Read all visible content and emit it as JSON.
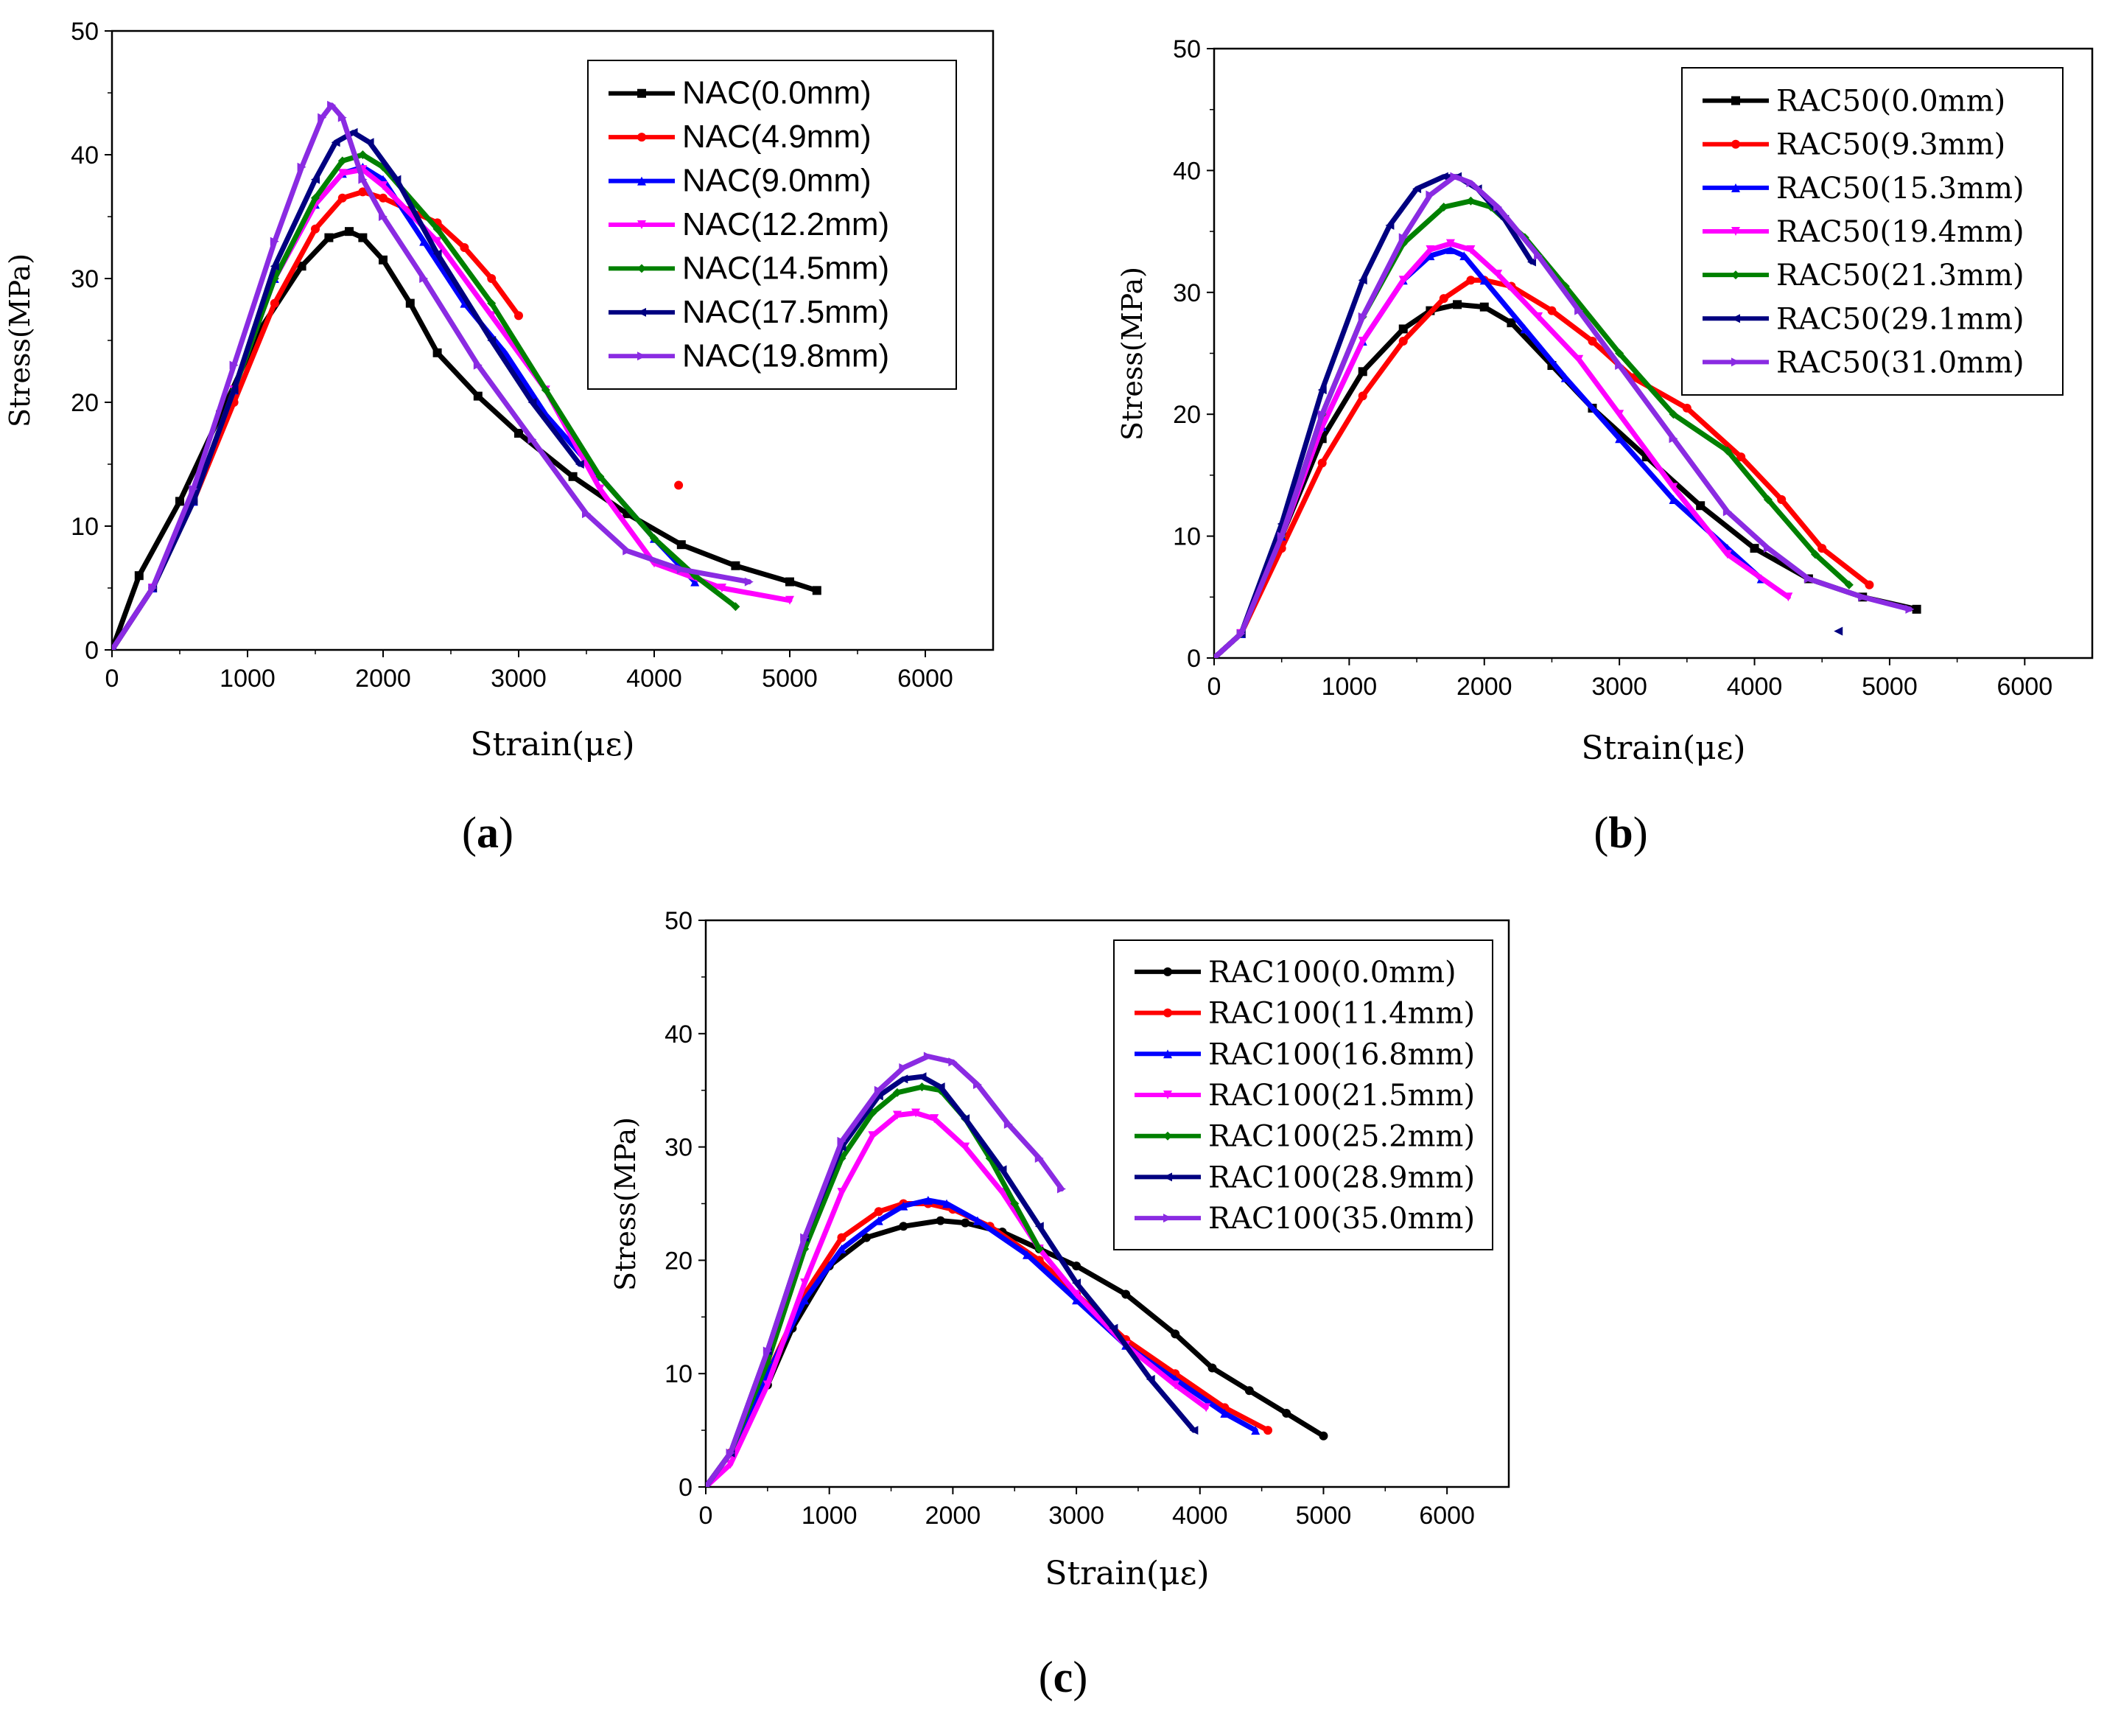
{
  "chart_data": [
    {
      "type": "line",
      "panel": "a",
      "caption": "a",
      "xlabel": "Strain(με)",
      "ylabel": "Stress(MPa)",
      "xlim": [
        0,
        6500
      ],
      "ylim": [
        0,
        50
      ],
      "xticks": [
        0,
        1000,
        2000,
        3000,
        4000,
        5000,
        6000
      ],
      "yticks": [
        0,
        10,
        20,
        30,
        40,
        50
      ],
      "legend_position": "top-right",
      "legend_font": "sans",
      "series": [
        {
          "name": "NAC(0.0mm)",
          "color": "#000000",
          "marker": "square",
          "x": [
            0,
            200,
            500,
            800,
            1100,
            1400,
            1600,
            1750,
            1850,
            2000,
            2200,
            2400,
            2700,
            3000,
            3400,
            3800,
            4200,
            4600,
            5000,
            5200
          ],
          "y": [
            0,
            6,
            12,
            19,
            26,
            31,
            33.3,
            33.8,
            33.3,
            31.5,
            28,
            24,
            20.5,
            17.5,
            14,
            11,
            8.5,
            6.8,
            5.5,
            4.8
          ]
        },
        {
          "name": "NAC(4.9mm)",
          "color": "#ff0000",
          "marker": "circle",
          "x": [
            0,
            300,
            600,
            900,
            1200,
            1500,
            1700,
            1850,
            2000,
            2200,
            2400,
            2600,
            2800,
            3000
          ],
          "y": [
            0,
            5,
            12,
            20,
            28,
            34,
            36.5,
            37,
            36.5,
            35.5,
            34.5,
            32.5,
            30,
            27
          ]
        },
        {
          "name": "NAC(4.9mm) outlier",
          "color": "#ff0000",
          "marker": "circle",
          "legend": false,
          "x": [
            4180
          ],
          "y": [
            13.3
          ]
        },
        {
          "name": "NAC(9.0mm)",
          "color": "#0000ff",
          "marker": "triangle-up",
          "x": [
            0,
            300,
            600,
            900,
            1200,
            1500,
            1700,
            1850,
            2000,
            2300,
            2600,
            2900,
            3200,
            3600,
            4000,
            4300
          ],
          "y": [
            0,
            5,
            12,
            21,
            30,
            36,
            38.5,
            39,
            38,
            33,
            28,
            24,
            19,
            14,
            9,
            5.5
          ]
        },
        {
          "name": "NAC(12.2mm)",
          "color": "#ff00ff",
          "marker": "triangle-down",
          "x": [
            0,
            300,
            600,
            900,
            1200,
            1500,
            1700,
            1850,
            2000,
            2400,
            2800,
            3200,
            3600,
            4000,
            4500,
            5000
          ],
          "y": [
            0,
            5,
            12,
            21,
            30,
            36,
            38.5,
            38.8,
            37.5,
            33,
            27,
            21,
            13,
            7,
            5,
            4
          ]
        },
        {
          "name": "NAC(14.5mm)",
          "color": "#008000",
          "marker": "diamond",
          "x": [
            0,
            300,
            600,
            900,
            1200,
            1500,
            1700,
            1850,
            2000,
            2400,
            2800,
            3200,
            3600,
            4000,
            4300,
            4600
          ],
          "y": [
            0,
            5,
            12,
            21,
            30,
            36.5,
            39.5,
            40,
            39,
            34,
            28,
            21,
            14,
            9,
            6,
            3.5
          ]
        },
        {
          "name": "NAC(17.5mm)",
          "color": "#000080",
          "marker": "triangle-left",
          "x": [
            0,
            300,
            600,
            900,
            1200,
            1500,
            1650,
            1780,
            1900,
            2100,
            2400,
            2800,
            3100,
            3450
          ],
          "y": [
            0,
            5,
            12,
            21,
            31,
            38,
            41,
            41.8,
            41,
            38,
            32,
            25,
            20,
            15
          ]
        },
        {
          "name": "NAC(19.8mm)",
          "color": "#8a2be2",
          "marker": "triangle-right",
          "x": [
            0,
            300,
            600,
            900,
            1200,
            1400,
            1550,
            1620,
            1700,
            1850,
            2000,
            2300,
            2700,
            3100,
            3500,
            3800,
            4200,
            4700
          ],
          "y": [
            0,
            5,
            13,
            23,
            33,
            39,
            43,
            44,
            43,
            38,
            35,
            30,
            23,
            17,
            11,
            8,
            6.5,
            5.5
          ]
        }
      ]
    },
    {
      "type": "line",
      "panel": "b",
      "caption": "b",
      "xlabel": "Strain(με)",
      "ylabel": "Stress(MPa)",
      "xlim": [
        0,
        6500
      ],
      "ylim": [
        0,
        50
      ],
      "xticks": [
        0,
        1000,
        2000,
        3000,
        4000,
        5000,
        6000
      ],
      "yticks": [
        0,
        10,
        20,
        30,
        40,
        50
      ],
      "legend_position": "top-right",
      "legend_font": "serif",
      "series": [
        {
          "name": "RAC50(0.0mm)",
          "color": "#000000",
          "marker": "square",
          "x": [
            0,
            200,
            500,
            800,
            1100,
            1400,
            1600,
            1800,
            2000,
            2200,
            2500,
            2800,
            3200,
            3600,
            4000,
            4400,
            4800,
            5200
          ],
          "y": [
            0,
            2,
            10,
            18,
            23.5,
            27,
            28.5,
            29,
            28.8,
            27.5,
            24,
            20.5,
            16.5,
            12.5,
            9,
            6.5,
            5,
            4
          ]
        },
        {
          "name": "RAC50(9.3mm)",
          "color": "#ff0000",
          "marker": "circle",
          "x": [
            0,
            200,
            500,
            800,
            1100,
            1400,
            1700,
            1900,
            2000,
            2200,
            2500,
            2800,
            3100,
            3500,
            3900,
            4200,
            4500,
            4850
          ],
          "y": [
            0,
            2,
            9,
            16,
            21.5,
            26,
            29.5,
            31,
            31,
            30.5,
            28.5,
            26,
            23,
            20.5,
            16.5,
            13,
            9,
            6
          ]
        },
        {
          "name": "RAC50(15.3mm)",
          "color": "#0000ff",
          "marker": "triangle-up",
          "x": [
            0,
            200,
            500,
            800,
            1100,
            1400,
            1600,
            1750,
            1850,
            2000,
            2300,
            2600,
            3000,
            3400,
            3800,
            4050
          ],
          "y": [
            0,
            2,
            10,
            19,
            26,
            31,
            33,
            33.5,
            33,
            31,
            27,
            23,
            18,
            13,
            9,
            6.5
          ]
        },
        {
          "name": "RAC50(19.4mm)",
          "color": "#ff00ff",
          "marker": "triangle-down",
          "x": [
            0,
            200,
            500,
            800,
            1100,
            1400,
            1600,
            1750,
            1900,
            2100,
            2400,
            2700,
            3000,
            3400,
            3800,
            4250
          ],
          "y": [
            0,
            2,
            10,
            19,
            26,
            31,
            33.5,
            34,
            33.5,
            31.5,
            28,
            24.5,
            20,
            14,
            8.5,
            5
          ]
        },
        {
          "name": "RAC50(21.3mm)",
          "color": "#008000",
          "marker": "diamond",
          "x": [
            0,
            200,
            500,
            800,
            1100,
            1400,
            1700,
            1900,
            2050,
            2300,
            2600,
            3000,
            3400,
            3800,
            4100,
            4450,
            4700
          ],
          "y": [
            0,
            2,
            10,
            20,
            28,
            34,
            37,
            37.5,
            37,
            34.5,
            30.5,
            25,
            20,
            17,
            13,
            8.5,
            6
          ]
        },
        {
          "name": "RAC50(29.1mm)",
          "color": "#000080",
          "marker": "triangle-left",
          "x": [
            0,
            200,
            500,
            800,
            1100,
            1300,
            1500,
            1700,
            1800,
            1950,
            2150,
            2350
          ],
          "y": [
            0,
            2,
            11,
            22,
            31,
            35.5,
            38.5,
            39.5,
            39.5,
            38.5,
            36,
            32.5
          ]
        },
        {
          "name": "RAC50(29.1mm) outlier",
          "color": "#000080",
          "marker": "triangle-left",
          "legend": false,
          "x": [
            4620
          ],
          "y": [
            2.2
          ]
        },
        {
          "name": "RAC50(31.0mm)",
          "color": "#8a2be2",
          "marker": "triangle-right",
          "x": [
            0,
            200,
            500,
            800,
            1100,
            1400,
            1600,
            1780,
            1900,
            2100,
            2400,
            2700,
            3000,
            3400,
            3800,
            4100,
            4400,
            4800,
            5150
          ],
          "y": [
            0,
            2,
            10,
            20,
            28,
            34.5,
            38,
            39.5,
            39,
            37,
            33,
            28.5,
            24,
            18,
            12,
            9,
            6.5,
            5,
            4
          ]
        }
      ]
    },
    {
      "type": "line",
      "panel": "c",
      "caption": "c",
      "xlabel": "Strain(με)",
      "ylabel": "Stress(MPa)",
      "xlim": [
        0,
        6500
      ],
      "ylim": [
        0,
        50
      ],
      "xticks": [
        0,
        1000,
        2000,
        3000,
        4000,
        5000,
        6000
      ],
      "yticks": [
        0,
        10,
        20,
        30,
        40,
        50
      ],
      "legend_position": "top-right",
      "legend_font": "serif",
      "series": [
        {
          "name": "RAC100(0.0mm)",
          "color": "#000000",
          "marker": "circle",
          "x": [
            0,
            200,
            500,
            700,
            1000,
            1300,
            1600,
            1900,
            2100,
            2400,
            2700,
            3000,
            3400,
            3800,
            4100,
            4400,
            4700,
            5000
          ],
          "y": [
            0,
            3,
            9,
            14,
            19.5,
            22,
            23,
            23.5,
            23.3,
            22.5,
            21,
            19.5,
            17,
            13.5,
            10.5,
            8.5,
            6.5,
            4.5
          ]
        },
        {
          "name": "RAC100(11.4mm)",
          "color": "#ff0000",
          "marker": "circle",
          "x": [
            0,
            200,
            500,
            800,
            1100,
            1400,
            1600,
            1800,
            2000,
            2300,
            2700,
            3000,
            3400,
            3800,
            4200,
            4550
          ],
          "y": [
            0,
            3,
            10,
            17,
            22,
            24.3,
            25,
            25,
            24.5,
            23,
            20,
            17,
            13,
            10,
            7,
            5
          ]
        },
        {
          "name": "RAC100(16.8mm)",
          "color": "#0000ff",
          "marker": "triangle-up",
          "x": [
            0,
            200,
            500,
            800,
            1100,
            1400,
            1600,
            1800,
            1950,
            2200,
            2600,
            3000,
            3400,
            3800,
            4200,
            4450
          ],
          "y": [
            0,
            3,
            10,
            16.5,
            21,
            23.5,
            24.8,
            25.3,
            25,
            23.5,
            20.5,
            16.5,
            12.5,
            9.5,
            6.5,
            5
          ]
        },
        {
          "name": "RAC100(21.5mm)",
          "color": "#ff00ff",
          "marker": "triangle-down",
          "x": [
            0,
            200,
            500,
            800,
            1100,
            1350,
            1550,
            1700,
            1850,
            2100,
            2400,
            2700,
            3000,
            3400,
            3800,
            4050
          ],
          "y": [
            0,
            2,
            9,
            18,
            26,
            31,
            32.8,
            33,
            32.5,
            30,
            26,
            21,
            17,
            12.5,
            9,
            7
          ]
        },
        {
          "name": "RAC100(25.2mm)",
          "color": "#008000",
          "marker": "diamond",
          "x": [
            0,
            200,
            500,
            800,
            1100,
            1350,
            1550,
            1750,
            1900,
            2100,
            2300,
            2500,
            2700
          ],
          "y": [
            0,
            3,
            11,
            21,
            29,
            33,
            34.8,
            35.3,
            35,
            32.5,
            29,
            25,
            21
          ]
        },
        {
          "name": "RAC100(28.9mm)",
          "color": "#000080",
          "marker": "triangle-left",
          "x": [
            0,
            200,
            500,
            800,
            1100,
            1400,
            1600,
            1750,
            1900,
            2100,
            2400,
            2700,
            3000,
            3300,
            3600,
            3950
          ],
          "y": [
            0,
            3,
            12,
            22,
            30,
            34.5,
            36,
            36.2,
            35.3,
            32.5,
            28,
            23,
            18,
            14,
            9.5,
            5
          ]
        },
        {
          "name": "RAC100(35.0mm)",
          "color": "#8a2be2",
          "marker": "triangle-right",
          "x": [
            0,
            200,
            500,
            800,
            1100,
            1400,
            1600,
            1800,
            2000,
            2200,
            2450,
            2700,
            2880
          ],
          "y": [
            0,
            3,
            12,
            22,
            30.5,
            35,
            37,
            38,
            37.5,
            35.5,
            32,
            29,
            26.3
          ]
        }
      ]
    }
  ]
}
